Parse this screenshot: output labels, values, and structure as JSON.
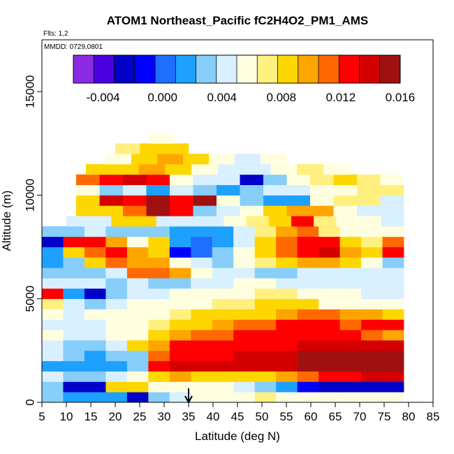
{
  "chart_data": {
    "type": "heatmap",
    "title": "ATOM1 Northeast_Pacific fC2H4O2_PM1_AMS",
    "flights_label": "Flts: 1,2",
    "dates_label": "MMDD: 0729,0801",
    "xlabel": "Latitude (deg N)",
    "ylabel": "Altitude (m)",
    "xlim": [
      5,
      85
    ],
    "ylim": [
      0,
      17500
    ],
    "x_ticks": [
      "5",
      "10",
      "15",
      "20",
      "25",
      "30",
      "35",
      "40",
      "45",
      "50",
      "55",
      "60",
      "65",
      "70",
      "75",
      "80",
      "85"
    ],
    "y_ticks": [
      "0",
      "5000",
      "10000",
      "15000"
    ],
    "colorbar": {
      "range": [
        -0.006,
        0.016
      ],
      "tick_labels": [
        "-0.004",
        "0.000",
        "0.004",
        "0.008",
        "0.012",
        "0.016"
      ],
      "colors": [
        "#8a2be2",
        "#4b00e0",
        "#0000c8",
        "#0000ff",
        "#1e6eff",
        "#1ea0ff",
        "#87cefa",
        "#d8f0ff",
        "#ffffe0",
        "#fff080",
        "#ffd700",
        "#ffa500",
        "#ff6a00",
        "#ff0000",
        "#d40000",
        "#a01010"
      ]
    },
    "marker_latitude": 35,
    "grid": false,
    "rows": [
      {
        "alt": 250,
        "lat": [
          5,
          79
        ],
        "values": [
          0.003,
          0.002,
          0.001,
          0.002,
          -0.002,
          0.003,
          0.004,
          0.005,
          0.006,
          0.006,
          0.007,
          0.006,
          0.006,
          0.006,
          0.006,
          0.006,
          0.006
        ]
      },
      {
        "alt": 750,
        "lat": [
          5,
          79
        ],
        "values": [
          0.003,
          -0.003,
          -0.002,
          0.009,
          0.008,
          0.006,
          0.005,
          0.006,
          0.005,
          0.004,
          0.003,
          0.002,
          -0.001,
          -0.002,
          -0.003,
          -0.003,
          -0.003
        ]
      },
      {
        "alt": 1250,
        "lat": [
          5,
          79
        ],
        "values": [
          0.004,
          0.003,
          0.003,
          0.004,
          0.005,
          0.008,
          0.01,
          0.009,
          0.009,
          0.009,
          0.009,
          0.01,
          0.011,
          0.012,
          0.013,
          0.014,
          0.014
        ]
      },
      {
        "alt": 1750,
        "lat": [
          5,
          79
        ],
        "values": [
          0.002,
          0.002,
          0.001,
          0.001,
          0.003,
          0.012,
          0.014,
          0.014,
          0.014,
          0.014,
          0.014,
          0.014,
          0.015,
          0.015,
          0.015,
          0.016,
          0.016
        ]
      },
      {
        "alt": 2250,
        "lat": [
          5,
          79
        ],
        "values": [
          0.004,
          0.003,
          0.002,
          0.003,
          0.003,
          0.011,
          0.013,
          0.013,
          0.013,
          0.014,
          0.014,
          0.014,
          0.015,
          0.015,
          0.015,
          0.015,
          0.015
        ]
      },
      {
        "alt": 2750,
        "lat": [
          5,
          79
        ],
        "values": [
          0.004,
          0.003,
          0.003,
          0.004,
          0.008,
          0.01,
          0.012,
          0.012,
          0.012,
          0.013,
          0.013,
          0.013,
          0.014,
          0.014,
          0.014,
          0.014,
          0.014
        ]
      },
      {
        "alt": 3250,
        "lat": [
          5,
          79
        ],
        "values": [
          0.005,
          0.004,
          0.004,
          0.005,
          0.006,
          0.009,
          0.01,
          0.011,
          0.011,
          0.012,
          0.012,
          0.013,
          0.013,
          0.013,
          0.012,
          0.011,
          0.01
        ]
      },
      {
        "alt": 3750,
        "lat": [
          5,
          79
        ],
        "values": [
          0.004,
          0.004,
          0.004,
          0.005,
          0.005,
          0.007,
          0.008,
          0.009,
          0.01,
          0.011,
          0.011,
          0.012,
          0.012,
          0.012,
          0.011,
          0.013,
          0.012
        ]
      },
      {
        "alt": 4250,
        "lat": [
          5,
          79
        ],
        "values": [
          0.006,
          0.004,
          0.005,
          0.005,
          0.006,
          0.006,
          0.007,
          0.008,
          0.008,
          0.009,
          0.009,
          0.01,
          0.011,
          0.011,
          0.01,
          0.01,
          0.009
        ]
      },
      {
        "alt": 4750,
        "lat": [
          5,
          79
        ],
        "values": [
          0.007,
          0.004,
          0.003,
          0.004,
          0.005,
          0.005,
          0.006,
          0.006,
          0.007,
          0.007,
          0.008,
          0.008,
          0.008,
          0.006,
          0.006,
          0.005,
          0.005
        ]
      },
      {
        "alt": 5250,
        "lat": [
          5,
          79
        ],
        "values": [
          0.012,
          0.002,
          -0.003,
          0.003,
          0.004,
          0.004,
          0.005,
          0.005,
          0.006,
          0.006,
          0.007,
          0.007,
          0.006,
          0.005,
          0.005,
          0.004,
          0.004
        ]
      },
      {
        "alt": 5750,
        "lat": [
          5,
          79
        ],
        "values": [
          0.004,
          0.004,
          0.004,
          0.003,
          0.004,
          0.003,
          0.003,
          0.004,
          0.004,
          0.005,
          0.005,
          0.004,
          0.004,
          0.004,
          0.004,
          0.004,
          0.004
        ]
      },
      {
        "alt": 6250,
        "lat": [
          5,
          79
        ],
        "values": [
          0.003,
          0.003,
          0.003,
          0.004,
          0.011,
          0.011,
          0.01,
          0.006,
          0.004,
          0.004,
          0.003,
          0.003,
          0.004,
          0.004,
          0.004,
          0.004,
          0.004
        ]
      },
      {
        "alt": 6750,
        "lat": [
          5,
          79
        ],
        "values": [
          0.001,
          0.003,
          0.008,
          0.011,
          0.01,
          0.01,
          0.006,
          0.004,
          0.003,
          0.005,
          0.007,
          0.009,
          0.01,
          0.01,
          0.008,
          0.006,
          0.003
        ]
      },
      {
        "alt": 7250,
        "lat": [
          5,
          79
        ],
        "values": [
          0.002,
          0.008,
          0.011,
          0.012,
          0.01,
          0.008,
          -0.001,
          0.0,
          0.003,
          0.006,
          0.009,
          0.011,
          0.013,
          0.014,
          0.01,
          0.008,
          0.012
        ]
      },
      {
        "alt": 7750,
        "lat": [
          5,
          79
        ],
        "values": [
          -0.002,
          0.012,
          0.013,
          0.01,
          0.005,
          0.009,
          0.001,
          0.0,
          0.001,
          0.004,
          0.008,
          0.011,
          0.012,
          0.013,
          0.009,
          0.007,
          0.011
        ]
      },
      {
        "alt": 8250,
        "lat": [
          5,
          79
        ],
        "values": [
          0.003,
          0.003,
          0.004,
          0.003,
          0.003,
          0.003,
          0.002,
          0.001,
          0.002,
          0.004,
          0.007,
          0.01,
          0.011,
          0.007,
          0.006,
          0.005,
          0.005
        ]
      },
      {
        "alt": 8750,
        "lat": [
          10,
          79
        ],
        "values": [
          0.004,
          0.004,
          0.009,
          0.009,
          0.004,
          0.004,
          0.004,
          0.006,
          0.007,
          0.009,
          0.012,
          0.007,
          0.005,
          0.005,
          0.004
        ]
      },
      {
        "alt": 9250,
        "lat": [
          12,
          79
        ],
        "values": [
          0.008,
          0.009,
          0.011,
          0.015,
          0.013,
          0.003,
          0.004,
          0.006,
          0.008,
          0.01,
          0.01,
          0.006,
          0.004,
          0.004
        ]
      },
      {
        "alt": 9750,
        "lat": [
          12,
          79
        ],
        "values": [
          0.009,
          0.014,
          0.012,
          0.016,
          0.013,
          0.015,
          0.006,
          0.003,
          0.002,
          0.002,
          0.005,
          0.007,
          0.007,
          0.004
        ]
      },
      {
        "alt": 10250,
        "lat": [
          12,
          79
        ],
        "values": [
          0.005,
          0.003,
          0.004,
          0.002,
          0.004,
          0.003,
          0.002,
          0.003,
          0.004,
          0.004,
          0.005,
          0.006,
          0.007,
          0.007
        ]
      },
      {
        "alt": 10750,
        "lat": [
          12,
          79
        ],
        "values": [
          0.011,
          0.013,
          0.014,
          0.012,
          0.006,
          0.004,
          0.004,
          -0.002,
          0.003,
          0.006,
          0.007,
          0.008,
          0.007,
          0.006
        ]
      },
      {
        "alt": 11250,
        "lat": [
          14,
          68
        ],
        "values": [
          0.008,
          0.009,
          0.01,
          0.008,
          0.006,
          0.004,
          0.004,
          0.006,
          0.007,
          0.006
        ]
      },
      {
        "alt": 11750,
        "lat": [
          18,
          55
        ],
        "values": [
          0.006,
          0.009,
          0.01,
          0.009,
          0.006,
          0.004,
          0.005
        ]
      },
      {
        "alt": 12250,
        "lat": [
          20,
          35
        ],
        "values": [
          0.007,
          0.008,
          0.009
        ]
      },
      {
        "alt": 12750,
        "lat": [
          27,
          32
        ],
        "values": [
          0.006
        ]
      }
    ]
  }
}
